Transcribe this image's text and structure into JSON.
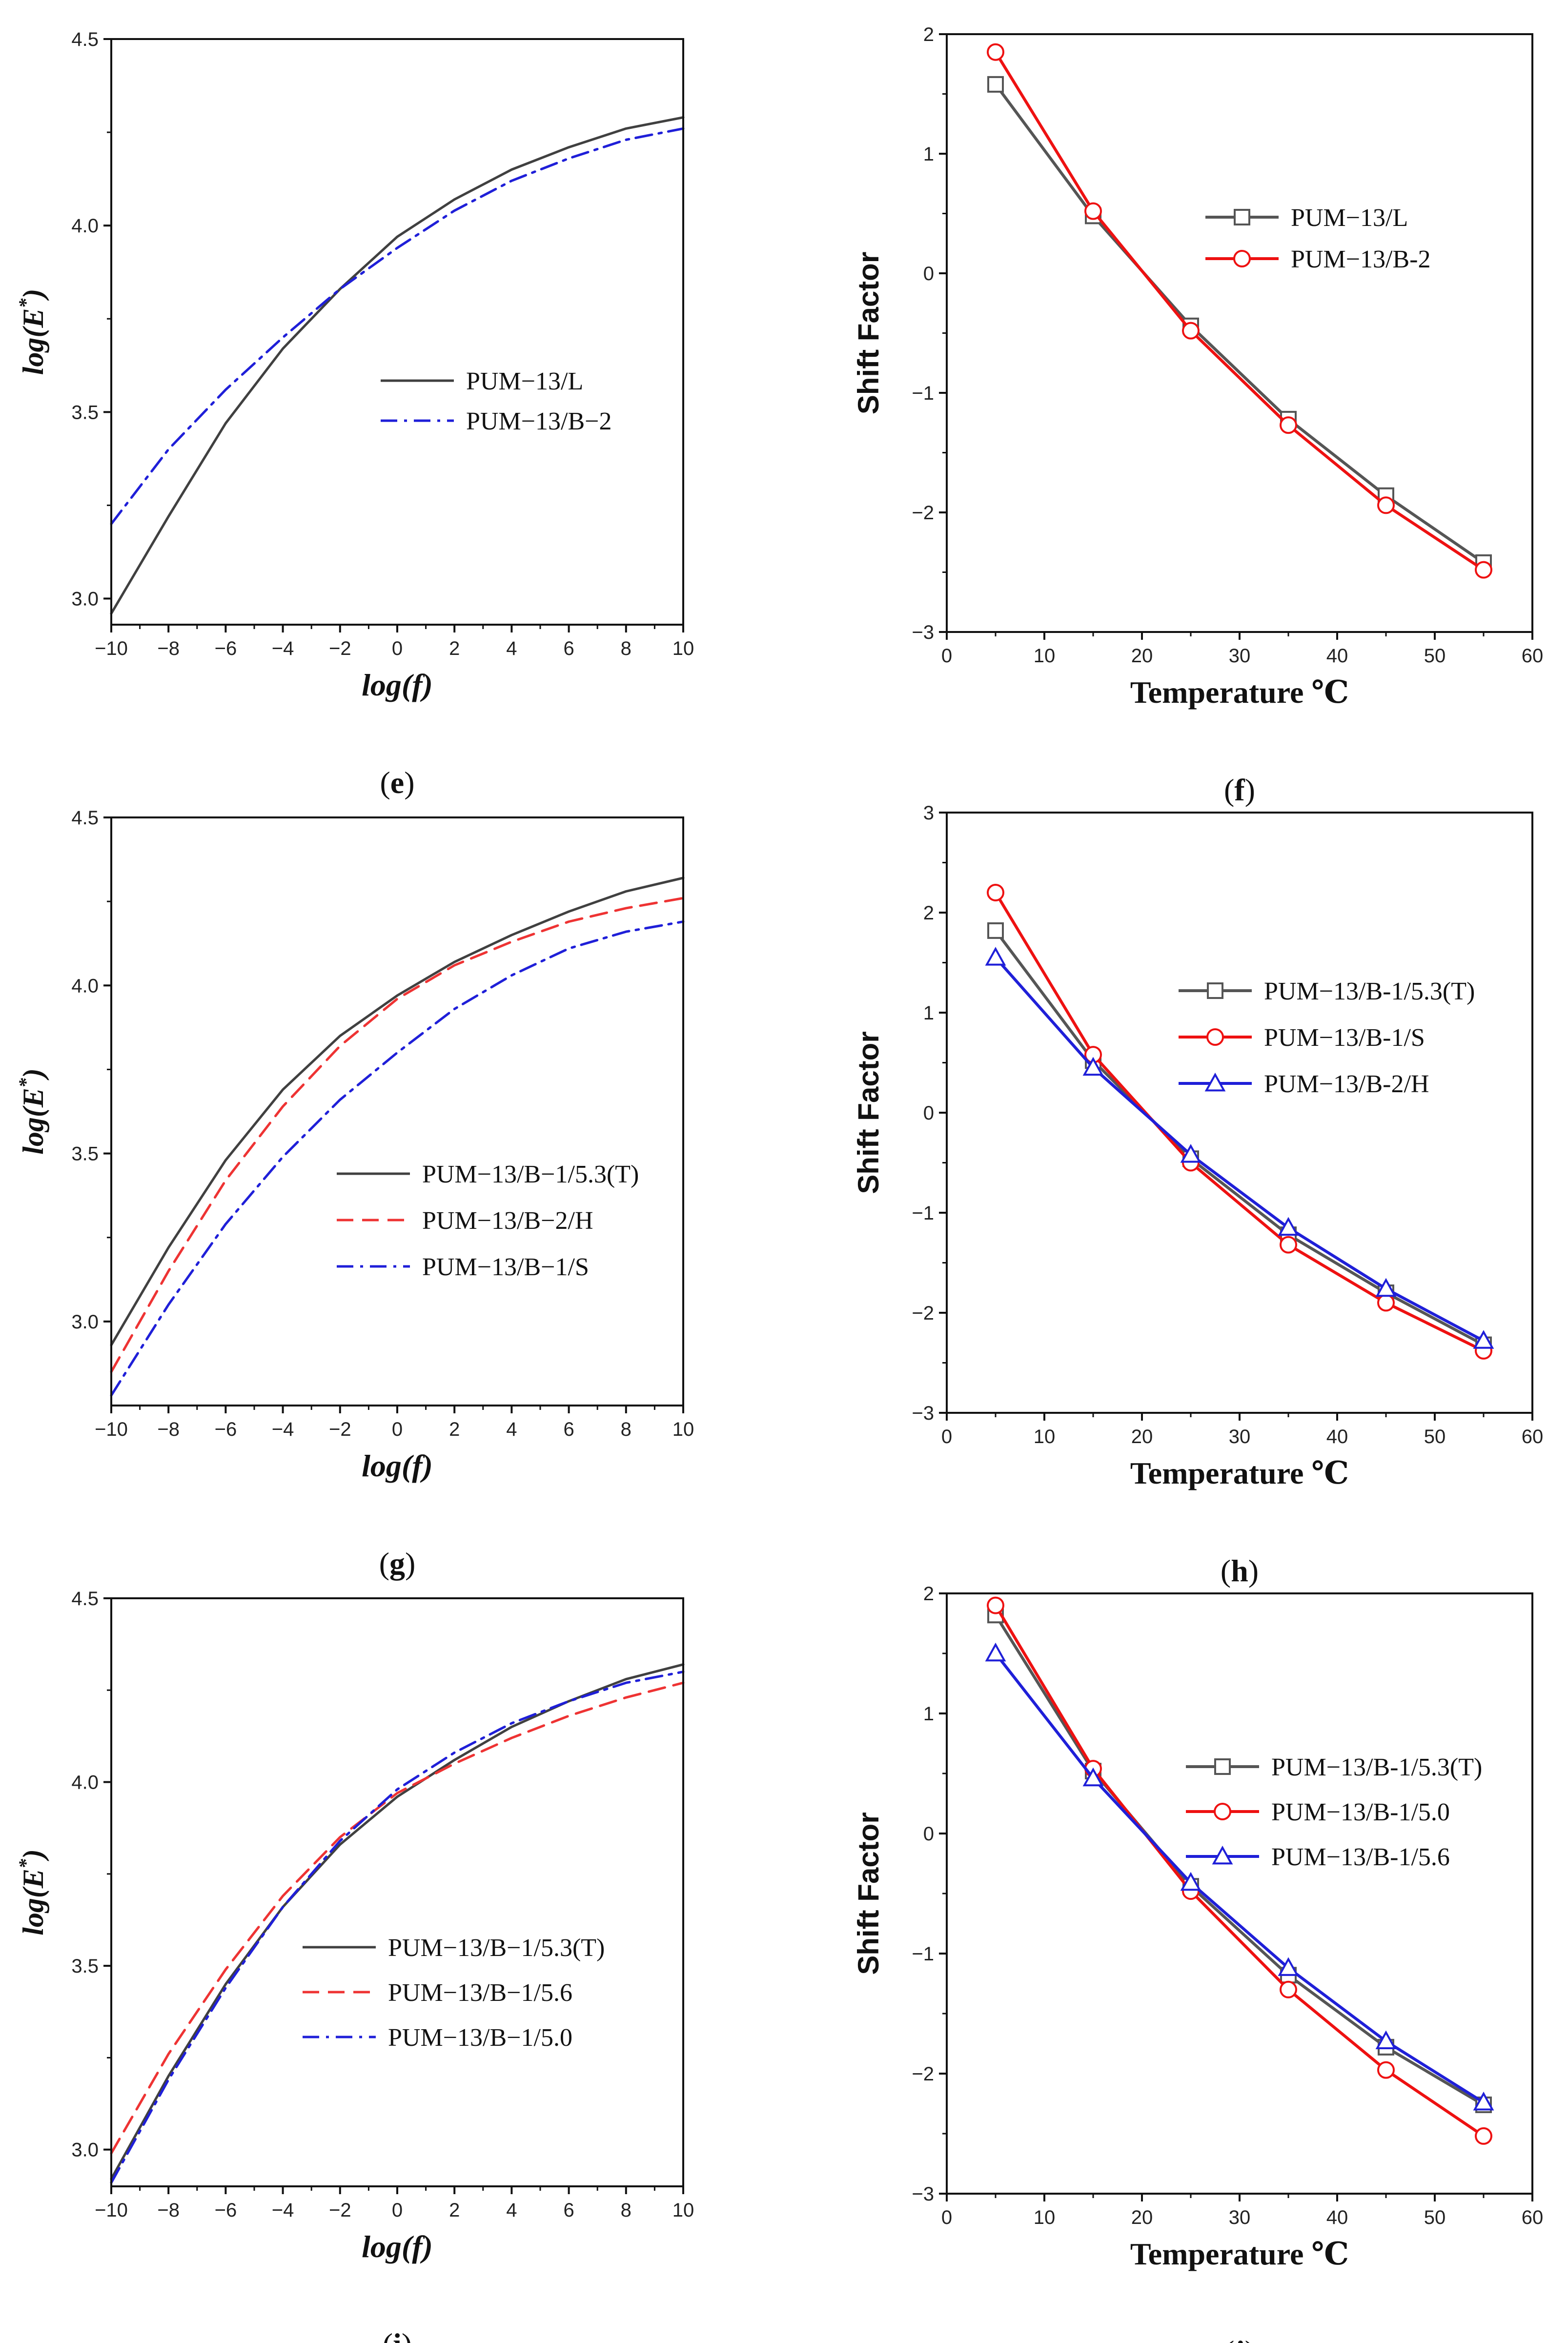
{
  "chart_data": [
    {
      "id": "e",
      "type": "line",
      "caption_letter": "e",
      "xlabel": "log(f)",
      "ylabel": "log(E*)",
      "xlim": [
        -10,
        10
      ],
      "ylim": [
        2.93,
        4.5
      ],
      "xticks": [
        -10,
        -8,
        -6,
        -4,
        -2,
        0,
        2,
        4,
        6,
        8,
        10
      ],
      "yticks": [
        3.0,
        3.5,
        4.0,
        4.5
      ],
      "ytick_labels": [
        "3.0",
        "3.5",
        "4.0",
        "4.5"
      ],
      "legend_position": "center",
      "series": [
        {
          "name": "PUM−13/L",
          "color": "#404040",
          "dash": "solid",
          "x": [
            -10,
            -8,
            -6,
            -4,
            -2,
            0,
            2,
            4,
            6,
            8,
            10
          ],
          "y": [
            2.96,
            3.22,
            3.47,
            3.67,
            3.83,
            3.97,
            4.07,
            4.15,
            4.21,
            4.26,
            4.29
          ]
        },
        {
          "name": "PUM−13/B−2",
          "color": "#1f1fd8",
          "dash": "dashdot",
          "x": [
            -10,
            -8,
            -6,
            -4,
            -2,
            0,
            2,
            4,
            6,
            8,
            10
          ],
          "y": [
            3.2,
            3.4,
            3.56,
            3.7,
            3.83,
            3.94,
            4.04,
            4.12,
            4.18,
            4.23,
            4.26
          ]
        }
      ]
    },
    {
      "id": "f",
      "type": "line",
      "caption_letter": "f",
      "xlabel": "Temperature ℃",
      "ylabel": "Shift Factor",
      "xlim": [
        0,
        60
      ],
      "ylim": [
        -3,
        2
      ],
      "xticks": [
        0,
        10,
        20,
        30,
        40,
        50,
        60
      ],
      "yticks": [
        -3,
        -2,
        -1,
        0,
        1,
        2
      ],
      "ytick_labels": [
        "−3",
        "−2",
        "−1",
        "0",
        "1",
        "2"
      ],
      "legend_position": "top-center",
      "series": [
        {
          "name": "PUM−13/L",
          "color": "#555555",
          "marker": "square",
          "x": [
            5,
            15,
            25,
            35,
            45,
            55
          ],
          "y": [
            1.58,
            0.48,
            -0.44,
            -1.22,
            -1.86,
            -2.42
          ]
        },
        {
          "name": "PUM−13/B-2",
          "color": "#ee1111",
          "marker": "circle",
          "x": [
            5,
            15,
            25,
            35,
            45,
            55
          ],
          "y": [
            1.85,
            0.52,
            -0.48,
            -1.27,
            -1.94,
            -2.48
          ]
        }
      ]
    },
    {
      "id": "g",
      "type": "line",
      "caption_letter": "g",
      "xlabel": "log(f)",
      "ylabel": "log(E*)",
      "xlim": [
        -10,
        10
      ],
      "ylim": [
        2.75,
        4.5
      ],
      "xticks": [
        -10,
        -8,
        -6,
        -4,
        -2,
        0,
        2,
        4,
        6,
        8,
        10
      ],
      "yticks": [
        3.0,
        3.5,
        4.0,
        4.5
      ],
      "ytick_labels": [
        "3.0",
        "3.5",
        "4.0",
        "4.5"
      ],
      "legend_position": "center-right",
      "series": [
        {
          "name": "PUM−13/B−1/5.3(T)",
          "color": "#404040",
          "dash": "solid",
          "x": [
            -10,
            -8,
            -6,
            -4,
            -2,
            0,
            2,
            4,
            6,
            8,
            10
          ],
          "y": [
            2.93,
            3.22,
            3.48,
            3.69,
            3.85,
            3.97,
            4.07,
            4.15,
            4.22,
            4.28,
            4.32
          ]
        },
        {
          "name": "PUM−13/B−2/H",
          "color": "#ee3333",
          "dash": "dash",
          "x": [
            -10,
            -8,
            -6,
            -4,
            -2,
            0,
            2,
            4,
            6,
            8,
            10
          ],
          "y": [
            2.85,
            3.15,
            3.42,
            3.64,
            3.82,
            3.96,
            4.06,
            4.13,
            4.19,
            4.23,
            4.26
          ]
        },
        {
          "name": "PUM−13/B−1/S",
          "color": "#1f1fd8",
          "dash": "dashdot",
          "x": [
            -10,
            -8,
            -6,
            -4,
            -2,
            0,
            2,
            4,
            6,
            8,
            10
          ],
          "y": [
            2.78,
            3.05,
            3.29,
            3.49,
            3.66,
            3.8,
            3.93,
            4.03,
            4.11,
            4.16,
            4.19
          ]
        }
      ]
    },
    {
      "id": "h",
      "type": "line",
      "caption_letter": "h",
      "xlabel": "Temperature ℃",
      "ylabel": "Shift Factor",
      "xlim": [
        0,
        60
      ],
      "ylim": [
        -3,
        3
      ],
      "xticks": [
        0,
        10,
        20,
        30,
        40,
        50,
        60
      ],
      "yticks": [
        -3,
        -2,
        -1,
        0,
        1,
        2,
        3
      ],
      "ytick_labels": [
        "−3",
        "−2",
        "−1",
        "0",
        "1",
        "2",
        "3"
      ],
      "legend_position": "top-right",
      "series": [
        {
          "name": "PUM−13/B-1/5.3(T)",
          "color": "#555555",
          "marker": "square",
          "x": [
            5,
            15,
            25,
            35,
            45,
            55
          ],
          "y": [
            1.82,
            0.52,
            -0.46,
            -1.22,
            -1.8,
            -2.32
          ]
        },
        {
          "name": "PUM−13/B-1/S",
          "color": "#ee1111",
          "marker": "circle",
          "x": [
            5,
            15,
            25,
            35,
            45,
            55
          ],
          "y": [
            2.2,
            0.58,
            -0.5,
            -1.32,
            -1.9,
            -2.38
          ]
        },
        {
          "name": "PUM−13/B-2/H",
          "color": "#1f1fd8",
          "marker": "triangle",
          "x": [
            5,
            15,
            25,
            35,
            45,
            55
          ],
          "y": [
            1.55,
            0.45,
            -0.42,
            -1.15,
            -1.76,
            -2.28
          ]
        }
      ]
    },
    {
      "id": "i",
      "type": "line",
      "caption_letter": "i",
      "xlabel": "log(f)",
      "ylabel": "log(E*)",
      "xlim": [
        -10,
        10
      ],
      "ylim": [
        2.9,
        4.5
      ],
      "xticks": [
        -10,
        -8,
        -6,
        -4,
        -2,
        0,
        2,
        4,
        6,
        8,
        10
      ],
      "yticks": [
        3.0,
        3.5,
        4.0,
        4.5
      ],
      "ytick_labels": [
        "3.0",
        "3.5",
        "4.0",
        "4.5"
      ],
      "legend_position": "bottom-center",
      "series": [
        {
          "name": "PUM−13/B−1/5.3(T)",
          "color": "#404040",
          "dash": "solid",
          "x": [
            -10,
            -8,
            -6,
            -4,
            -2,
            0,
            2,
            4,
            6,
            8,
            10
          ],
          "y": [
            2.92,
            3.2,
            3.45,
            3.66,
            3.83,
            3.96,
            4.06,
            4.15,
            4.22,
            4.28,
            4.32
          ]
        },
        {
          "name": "PUM−13/B−1/5.6",
          "color": "#ee3333",
          "dash": "dash",
          "x": [
            -10,
            -8,
            -6,
            -4,
            -2,
            0,
            2,
            4,
            6,
            8,
            10
          ],
          "y": [
            2.99,
            3.26,
            3.49,
            3.69,
            3.85,
            3.97,
            4.05,
            4.12,
            4.18,
            4.23,
            4.27
          ]
        },
        {
          "name": "PUM−13/B−1/5.0",
          "color": "#1f1fd8",
          "dash": "dashdot",
          "x": [
            -10,
            -8,
            -6,
            -4,
            -2,
            0,
            2,
            4,
            6,
            8,
            10
          ],
          "y": [
            2.91,
            3.19,
            3.44,
            3.66,
            3.84,
            3.98,
            4.08,
            4.16,
            4.22,
            4.27,
            4.3
          ]
        }
      ]
    },
    {
      "id": "j",
      "type": "line",
      "caption_letter": "j",
      "xlabel": "Temperature ℃",
      "ylabel": "Shift Factor",
      "xlim": [
        0,
        60
      ],
      "ylim": [
        -3,
        2
      ],
      "xticks": [
        0,
        10,
        20,
        30,
        40,
        50,
        60
      ],
      "yticks": [
        -3,
        -2,
        -1,
        0,
        1,
        2
      ],
      "ytick_labels": [
        "−3",
        "−2",
        "−1",
        "0",
        "1",
        "2"
      ],
      "legend_position": "top-right",
      "series": [
        {
          "name": "PUM−13/B-1/5.3(T)",
          "color": "#555555",
          "marker": "square",
          "x": [
            5,
            15,
            25,
            35,
            45,
            55
          ],
          "y": [
            1.82,
            0.52,
            -0.44,
            -1.18,
            -1.78,
            -2.26
          ]
        },
        {
          "name": "PUM−13/B-1/5.0",
          "color": "#ee1111",
          "marker": "circle",
          "x": [
            5,
            15,
            25,
            35,
            45,
            55
          ],
          "y": [
            1.9,
            0.54,
            -0.48,
            -1.3,
            -1.97,
            -2.52
          ]
        },
        {
          "name": "PUM−13/B-1/5.6",
          "color": "#1f1fd8",
          "marker": "triangle",
          "x": [
            5,
            15,
            25,
            35,
            45,
            55
          ],
          "y": [
            1.5,
            0.46,
            -0.41,
            -1.12,
            -1.73,
            -2.24
          ]
        }
      ]
    }
  ]
}
